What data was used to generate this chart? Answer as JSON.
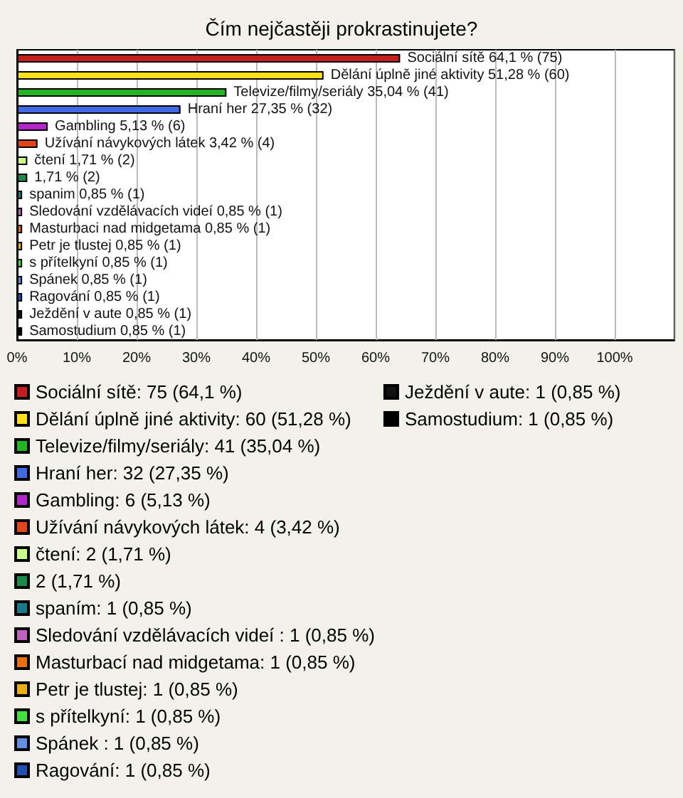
{
  "chart_data": {
    "type": "bar",
    "title": "Čím nejčastěji prokrastinujete?",
    "orientation": "horizontal",
    "stacked": true,
    "grid": "x",
    "legend": "bottom",
    "tick_labels": "x",
    "categories": [
      "Sociální sítě",
      "Dělání úplně jiné aktivity",
      "Televize/filmy/seriály",
      "Hraní her",
      "Gambling",
      "Užívání návykových látek",
      "čtení",
      null,
      "spanim",
      "Sledování vzdělávacích videí",
      "Masturbaci nad midgetama",
      "Petr je tlustej",
      "s přítelkyní",
      "Spánek",
      "Ragování",
      "Ježdění v aute",
      "Samostudium"
    ],
    "xlim": [
      0,
      110
    ],
    "xticks": [
      {
        "value": 0,
        "label": "0%"
      },
      {
        "value": 10,
        "label": "10%"
      },
      {
        "value": 20,
        "label": "20%"
      },
      {
        "value": 30,
        "label": "30%"
      },
      {
        "value": 40,
        "label": "40%"
      },
      {
        "value": 50,
        "label": "50%"
      },
      {
        "value": 60,
        "label": "60%"
      },
      {
        "value": 70,
        "label": "70%"
      },
      {
        "value": 80,
        "label": "80%"
      },
      {
        "value": 90,
        "label": "90%"
      },
      {
        "value": 100,
        "label": "100%"
      },
      {
        "value": 110,
        "label": null
      }
    ],
    "series": [
      {
        "name": "Sociální sítě: 75 (64,1 %)",
        "color": "#c41e1e",
        "values": [
          64.1,
          null,
          null,
          null,
          null,
          null,
          null,
          null,
          null,
          null,
          null,
          null,
          null,
          null,
          null,
          null,
          null
        ],
        "value_labels": [
          "64,1 % (75)",
          null,
          null,
          null,
          null,
          null,
          null,
          null,
          null,
          null,
          null,
          null,
          null,
          null,
          null,
          null,
          null
        ]
      },
      {
        "name": "Dělání úplně jiné aktivity: 60 (51,28 %)",
        "color": "#ffe01a",
        "values": [
          null,
          51.28,
          null,
          null,
          null,
          null,
          null,
          null,
          null,
          null,
          null,
          null,
          null,
          null,
          null,
          null,
          null
        ],
        "value_labels": [
          null,
          "51,28 % (60)",
          null,
          null,
          null,
          null,
          null,
          null,
          null,
          null,
          null,
          null,
          null,
          null,
          null,
          null,
          null
        ]
      },
      {
        "name": "Televize/filmy/seriály: 41 (35,04 %)",
        "color": "#22b422",
        "values": [
          null,
          null,
          35.04,
          null,
          null,
          null,
          null,
          null,
          null,
          null,
          null,
          null,
          null,
          null,
          null,
          null,
          null
        ],
        "value_labels": [
          null,
          null,
          "35,04 % (41)",
          null,
          null,
          null,
          null,
          null,
          null,
          null,
          null,
          null,
          null,
          null,
          null,
          null,
          null
        ]
      },
      {
        "name": "Hraní her: 32 (27,35 %)",
        "color": "#4169e1",
        "values": [
          null,
          null,
          null,
          27.35,
          null,
          null,
          null,
          null,
          null,
          null,
          null,
          null,
          null,
          null,
          null,
          null,
          null
        ],
        "value_labels": [
          null,
          null,
          null,
          "27,35 % (32)",
          null,
          null,
          null,
          null,
          null,
          null,
          null,
          null,
          null,
          null,
          null,
          null,
          null
        ]
      },
      {
        "name": "Gambling: 6 (5,13 %)",
        "color": "#b026c8",
        "values": [
          null,
          null,
          null,
          null,
          5.13,
          null,
          null,
          null,
          null,
          null,
          null,
          null,
          null,
          null,
          null,
          null,
          null
        ],
        "value_labels": [
          null,
          null,
          null,
          null,
          "5,13 % (6)",
          null,
          null,
          null,
          null,
          null,
          null,
          null,
          null,
          null,
          null,
          null,
          null
        ]
      },
      {
        "name": "Užívání návykových látek: 4 (3,42 %)",
        "color": "#e0461a",
        "values": [
          null,
          null,
          null,
          null,
          null,
          3.42,
          null,
          null,
          null,
          null,
          null,
          null,
          null,
          null,
          null,
          null,
          null
        ],
        "value_labels": [
          null,
          null,
          null,
          null,
          null,
          "3,42 % (4)",
          null,
          null,
          null,
          null,
          null,
          null,
          null,
          null,
          null,
          null,
          null
        ]
      },
      {
        "name": "čtení: 2 (1,71 %)",
        "color": "#ccff88",
        "values": [
          null,
          null,
          null,
          null,
          null,
          null,
          1.71,
          null,
          null,
          null,
          null,
          null,
          null,
          null,
          null,
          null,
          null
        ],
        "value_labels": [
          null,
          null,
          null,
          null,
          null,
          null,
          "1,71 % (2)",
          null,
          null,
          null,
          null,
          null,
          null,
          null,
          null,
          null,
          null
        ]
      },
      {
        "name": "2 (1,71 %)",
        "color": "#1a8a4a",
        "values": [
          null,
          null,
          null,
          null,
          null,
          null,
          null,
          1.71,
          null,
          null,
          null,
          null,
          null,
          null,
          null,
          null,
          null
        ],
        "value_labels": [
          null,
          null,
          null,
          null,
          null,
          null,
          null,
          "1,71 % (2)",
          null,
          null,
          null,
          null,
          null,
          null,
          null,
          null,
          null
        ]
      },
      {
        "name": "spaním: 1 (0,85 %)",
        "color": "#1a7a8c",
        "values": [
          null,
          null,
          null,
          null,
          null,
          null,
          null,
          null,
          0.85,
          null,
          null,
          null,
          null,
          null,
          null,
          null,
          null
        ],
        "value_labels": [
          null,
          null,
          null,
          null,
          null,
          null,
          null,
          null,
          "0,85 % (1)",
          null,
          null,
          null,
          null,
          null,
          null,
          null,
          null
        ]
      },
      {
        "name": "Sledování vzdělávacích videí : 1 (0,85 %)",
        "color": "#c060c0",
        "values": [
          null,
          null,
          null,
          null,
          null,
          null,
          null,
          null,
          null,
          0.85,
          null,
          null,
          null,
          null,
          null,
          null,
          null
        ],
        "value_labels": [
          null,
          null,
          null,
          null,
          null,
          null,
          null,
          null,
          null,
          "0,85 % (1)",
          null,
          null,
          null,
          null,
          null,
          null,
          null
        ]
      },
      {
        "name": "Masturbací nad midgetama: 1 (0,85 %)",
        "color": "#e87010",
        "values": [
          null,
          null,
          null,
          null,
          null,
          null,
          null,
          null,
          null,
          null,
          0.85,
          null,
          null,
          null,
          null,
          null,
          null
        ],
        "value_labels": [
          null,
          null,
          null,
          null,
          null,
          null,
          null,
          null,
          null,
          null,
          "0,85 % (1)",
          null,
          null,
          null,
          null,
          null,
          null
        ]
      },
      {
        "name": "Petr je tlustej: 1 (0,85 %)",
        "color": "#e8b010",
        "values": [
          null,
          null,
          null,
          null,
          null,
          null,
          null,
          null,
          null,
          null,
          null,
          0.85,
          null,
          null,
          null,
          null,
          null
        ],
        "value_labels": [
          null,
          null,
          null,
          null,
          null,
          null,
          null,
          null,
          null,
          null,
          null,
          "0,85 % (1)",
          null,
          null,
          null,
          null,
          null
        ]
      },
      {
        "name": "s přítelkyní: 1 (0,85 %)",
        "color": "#40e040",
        "values": [
          null,
          null,
          null,
          null,
          null,
          null,
          null,
          null,
          null,
          null,
          null,
          null,
          0.85,
          null,
          null,
          null,
          null
        ],
        "value_labels": [
          null,
          null,
          null,
          null,
          null,
          null,
          null,
          null,
          null,
          null,
          null,
          null,
          "0,85 % (1)",
          null,
          null,
          null,
          null
        ]
      },
      {
        "name": "Spánek : 1 (0,85 %)",
        "color": "#6090e0",
        "values": [
          null,
          null,
          null,
          null,
          null,
          null,
          null,
          null,
          null,
          null,
          null,
          null,
          null,
          0.85,
          null,
          null,
          null
        ],
        "value_labels": [
          null,
          null,
          null,
          null,
          null,
          null,
          null,
          null,
          null,
          null,
          null,
          null,
          null,
          "0,85 % (1)",
          null,
          null,
          null
        ]
      },
      {
        "name": "Ragování: 1 (0,85 %)",
        "color": "#2050b0",
        "values": [
          null,
          null,
          null,
          null,
          null,
          null,
          null,
          null,
          null,
          null,
          null,
          null,
          null,
          null,
          0.85,
          null,
          null
        ],
        "value_labels": [
          null,
          null,
          null,
          null,
          null,
          null,
          null,
          null,
          null,
          null,
          null,
          null,
          null,
          null,
          "0,85 % (1)",
          null,
          null
        ]
      },
      {
        "name": "Ježdění v aute: 1 (0,85 %)",
        "color": "#111111",
        "values": [
          null,
          null,
          null,
          null,
          null,
          null,
          null,
          null,
          null,
          null,
          null,
          null,
          null,
          null,
          null,
          0.85,
          null
        ],
        "value_labels": [
          null,
          null,
          null,
          null,
          null,
          null,
          null,
          null,
          null,
          null,
          null,
          null,
          null,
          null,
          null,
          "0,85 % (1)",
          null
        ]
      },
      {
        "name": "Samostudium: 1 (0,85 %)",
        "color": "#000000",
        "values": [
          null,
          null,
          null,
          null,
          null,
          null,
          null,
          null,
          null,
          null,
          null,
          null,
          null,
          null,
          null,
          null,
          0.85
        ],
        "value_labels": [
          null,
          null,
          null,
          null,
          null,
          null,
          null,
          null,
          null,
          null,
          null,
          null,
          null,
          null,
          null,
          null,
          "0,85 % (1)"
        ]
      }
    ]
  }
}
